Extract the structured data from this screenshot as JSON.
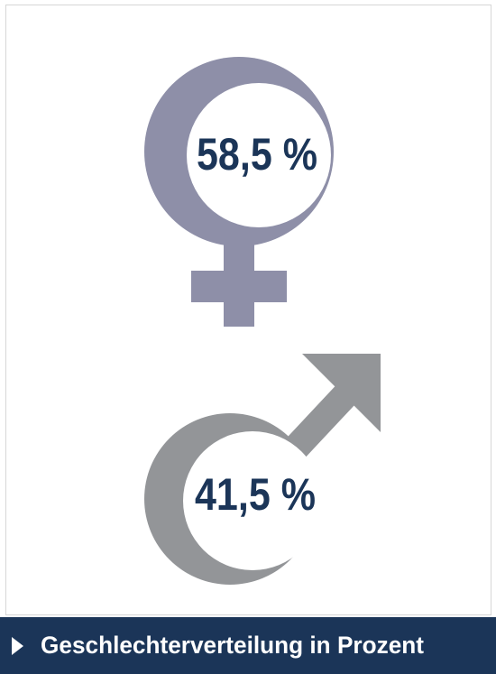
{
  "chart_data": {
    "type": "gender-symbols",
    "title": "Geschlechterverteilung in Prozent",
    "values": [
      58.5,
      41.5
    ],
    "value_labels": [
      "58,5 %",
      "41,5 %"
    ],
    "colors": [
      "#8e8fa8",
      "#939598"
    ]
  }
}
